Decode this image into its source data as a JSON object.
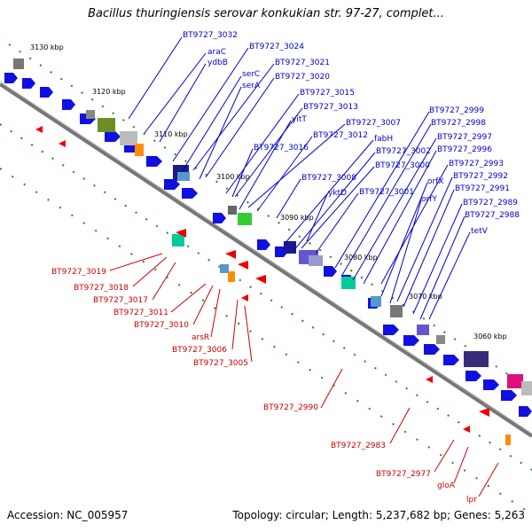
{
  "title": "Bacillus thuringiensis serovar konkukian str. 97-27, complet...",
  "footer": {
    "accession": "Accession: NC_005957",
    "topology": "Topology: circular; Length: 5,237,682 bp; Genes: 5,263"
  },
  "scale_labels": [
    "3130 kbp",
    "3120 kbp",
    "3110 kbp",
    "3100 kbp",
    "3090 kbp",
    "3080 kbp",
    "3070 kbp",
    "3060 kbp"
  ],
  "forward_labels": [
    "BT9727_3032",
    "araC",
    "ydbB",
    "BT9727_3024",
    "serC",
    "BT9727_3021",
    "serA",
    "BT9727_3020",
    "BT9727_3015",
    "BT9727_3013",
    "yitT",
    "BT9727_3007",
    "BT9727_3012",
    "BT9727_3016",
    "fabH",
    "BT9727_3002",
    "BT9727_3008",
    "BT9727_3000",
    "yktD",
    "BT9727_3001",
    "BT9727_2999",
    "BT9727_2998",
    "BT9727_2997",
    "BT9727_2996",
    "orfX",
    "BT9727_2993",
    "orfY",
    "BT9727_2992",
    "BT9727_2991",
    "BT9727_2989",
    "BT9727_2988",
    "tetV"
  ],
  "reverse_labels": [
    "BT9727_3019",
    "BT9727_3018",
    "BT9727_3017",
    "BT9727_3011",
    "BT9727_3010",
    "arsR",
    "BT9727_3006",
    "BT9727_3005",
    "BT9727_2990",
    "BT9727_2983",
    "BT9727_2977",
    "gloA",
    "lpr"
  ],
  "colors": {
    "forward": "#0000cc",
    "reverse": "#cc0000",
    "backbone": "#888888",
    "tick": "#1a8c1a"
  }
}
